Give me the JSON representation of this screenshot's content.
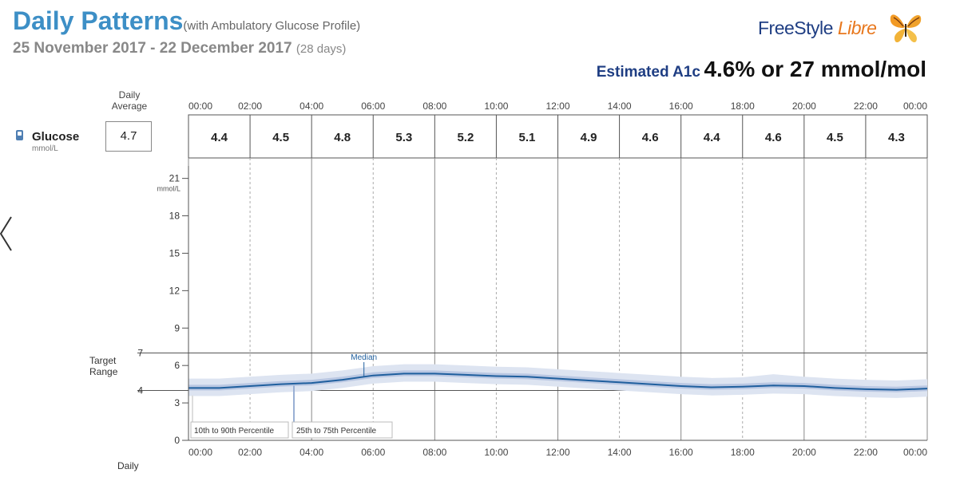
{
  "header": {
    "title": "Daily Patterns",
    "subtitle": "(with Ambulatory Glucose Profile)",
    "date_range": "25 November 2017 - 22 December 2017",
    "days": "(28 days)",
    "logo_text_1": "FreeStyle",
    "logo_text_2": "Libre",
    "a1c_label": "Estimated A1c",
    "a1c_value": "4.6% or 27 mmol/mol"
  },
  "summary": {
    "daily_average_label_line1": "Daily",
    "daily_average_label_line2": "Average",
    "glucose_label": "Glucose",
    "glucose_unit": "mmol/L",
    "daily_average_value": "4.7"
  },
  "chart_data": {
    "type": "line",
    "title": "Daily Patterns",
    "xlim_hours": [
      0,
      24
    ],
    "ylim": [
      0,
      22
    ],
    "y_ticks": [
      0,
      3,
      6,
      9,
      12,
      15,
      18,
      21
    ],
    "y_unit": "mmol/L",
    "top_time_labels": [
      "00:00",
      "02:00",
      "04:00",
      "06:00",
      "08:00",
      "10:00",
      "12:00",
      "14:00",
      "16:00",
      "18:00",
      "20:00",
      "22:00",
      "00:00"
    ],
    "bottom_time_labels": [
      "00:00",
      "02:00",
      "04:00",
      "06:00",
      "08:00",
      "10:00",
      "12:00",
      "14:00",
      "16:00",
      "18:00",
      "20:00",
      "22:00",
      "00:00"
    ],
    "hourly_average_values": [
      "4.4",
      "4.5",
      "4.8",
      "5.3",
      "5.2",
      "5.1",
      "4.9",
      "4.6",
      "4.4",
      "4.6",
      "4.5",
      "4.3"
    ],
    "target_range": {
      "label_line1": "Target",
      "label_line2": "Range",
      "low": 4,
      "high": 7,
      "low_label": "4",
      "high_label": "7"
    },
    "x_hours": [
      0,
      1,
      2,
      3,
      4,
      5,
      6,
      7,
      8,
      9,
      10,
      11,
      12,
      13,
      14,
      15,
      16,
      17,
      18,
      19,
      20,
      21,
      22,
      23,
      24
    ],
    "series": [
      {
        "name": "Median",
        "values": [
          4.2,
          4.2,
          4.35,
          4.5,
          4.6,
          4.85,
          5.2,
          5.35,
          5.35,
          5.25,
          5.15,
          5.1,
          4.95,
          4.8,
          4.65,
          4.5,
          4.35,
          4.25,
          4.3,
          4.4,
          4.35,
          4.2,
          4.1,
          4.05,
          4.15
        ]
      },
      {
        "name": "25th to 75th Percentile",
        "low": [
          4.0,
          4.0,
          4.15,
          4.3,
          4.4,
          4.65,
          5.0,
          5.15,
          5.15,
          5.05,
          4.95,
          4.9,
          4.75,
          4.6,
          4.45,
          4.3,
          4.15,
          4.05,
          4.1,
          4.2,
          4.15,
          4.0,
          3.9,
          3.85,
          3.95
        ],
        "high": [
          4.45,
          4.45,
          4.6,
          4.75,
          4.85,
          5.1,
          5.45,
          5.6,
          5.6,
          5.5,
          5.4,
          5.35,
          5.2,
          5.05,
          4.9,
          4.75,
          4.6,
          4.5,
          4.55,
          4.65,
          4.6,
          4.45,
          4.35,
          4.3,
          4.4
        ]
      },
      {
        "name": "10th to 90th Percentile",
        "low": [
          3.55,
          3.55,
          3.7,
          3.85,
          3.95,
          4.2,
          4.55,
          4.7,
          4.7,
          4.6,
          4.5,
          4.45,
          4.3,
          4.15,
          4.0,
          3.85,
          3.7,
          3.6,
          3.65,
          3.75,
          3.7,
          3.55,
          3.45,
          3.4,
          3.5
        ],
        "high": [
          4.95,
          4.95,
          5.1,
          5.25,
          5.35,
          5.6,
          5.95,
          6.1,
          6.1,
          6.0,
          5.9,
          5.85,
          5.7,
          5.55,
          5.4,
          5.25,
          5.1,
          5.0,
          5.05,
          5.3,
          5.1,
          4.95,
          4.85,
          4.8,
          4.9
        ]
      }
    ],
    "annotations": {
      "median": "Median",
      "p10_90": "10th to 90th Percentile",
      "p25_75": "25th to 75th Percentile"
    },
    "bottom_label": "Daily",
    "colors": {
      "median": "#1f5f9e",
      "iqr": "#b9c7e2",
      "outer": "#dde4f1",
      "title": "#3d8fc6",
      "a1c": "#1f3e83"
    }
  }
}
